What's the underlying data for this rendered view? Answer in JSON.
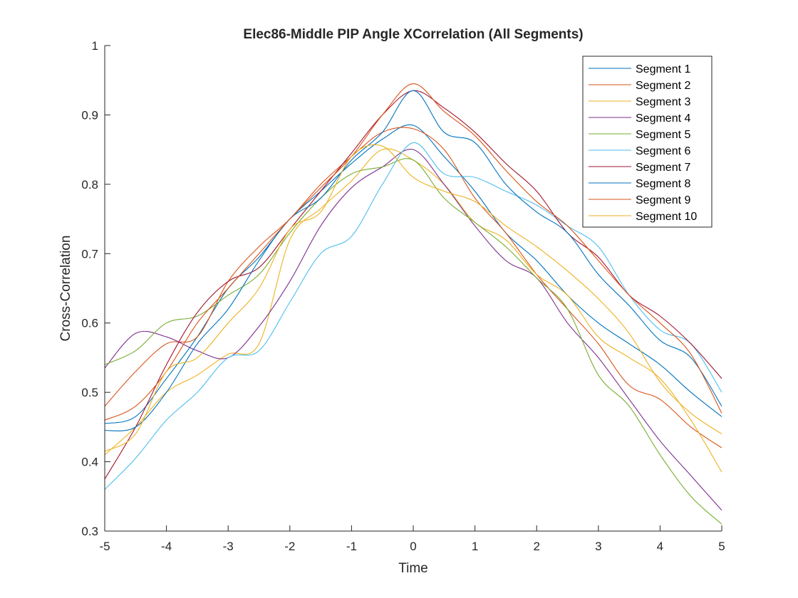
{
  "chart_data": {
    "type": "line",
    "title": "Elec86-Middle PIP Angle XCorrelation (All Segments)",
    "xlabel": "Time",
    "ylabel": "Cross-Correlation",
    "xlim": [
      -5,
      5
    ],
    "ylim": [
      0.3,
      1
    ],
    "xticks": [
      -5,
      -4,
      -3,
      -2,
      -1,
      0,
      1,
      2,
      3,
      4,
      5
    ],
    "yticks": [
      0.3,
      0.4,
      0.5,
      0.6,
      0.7,
      0.8,
      0.9,
      1
    ],
    "xtick_labels": [
      "-5",
      "-4",
      "-3",
      "-2",
      "-1",
      "0",
      "1",
      "2",
      "3",
      "4",
      "5"
    ],
    "ytick_labels": [
      "0.3",
      "0.4",
      "0.5",
      "0.6",
      "0.7",
      "0.8",
      "0.9",
      "1"
    ],
    "grid": false,
    "legend_position": "top-right",
    "x": [
      -5,
      -4.5,
      -4,
      -3.5,
      -3,
      -2.5,
      -2,
      -1.5,
      -1,
      -0.5,
      0,
      0.5,
      1,
      1.5,
      2,
      2.5,
      3,
      3.5,
      4,
      4.5,
      5
    ],
    "series": [
      {
        "name": "Segment 1",
        "color": "#0072BD",
        "values": [
          0.455,
          0.465,
          0.52,
          0.58,
          0.65,
          0.695,
          0.75,
          0.79,
          0.83,
          0.865,
          0.885,
          0.84,
          0.79,
          0.73,
          0.69,
          0.64,
          0.6,
          0.57,
          0.54,
          0.5,
          0.465
        ]
      },
      {
        "name": "Segment 2",
        "color": "#D95319",
        "values": [
          0.48,
          0.53,
          0.57,
          0.58,
          0.66,
          0.71,
          0.75,
          0.8,
          0.84,
          0.875,
          0.88,
          0.85,
          0.78,
          0.73,
          0.67,
          0.62,
          0.57,
          0.51,
          0.49,
          0.45,
          0.42
        ]
      },
      {
        "name": "Segment 3",
        "color": "#EDB120",
        "values": [
          0.41,
          0.45,
          0.5,
          0.525,
          0.555,
          0.57,
          0.72,
          0.765,
          0.805,
          0.85,
          0.835,
          0.8,
          0.745,
          0.72,
          0.67,
          0.64,
          0.58,
          0.55,
          0.52,
          0.46,
          0.385
        ]
      },
      {
        "name": "Segment 4",
        "color": "#7E2F8E",
        "values": [
          0.535,
          0.585,
          0.58,
          0.56,
          0.55,
          0.595,
          0.66,
          0.74,
          0.795,
          0.825,
          0.85,
          0.8,
          0.74,
          0.69,
          0.665,
          0.6,
          0.55,
          0.49,
          0.43,
          0.38,
          0.33
        ]
      },
      {
        "name": "Segment 5",
        "color": "#77AC30",
        "values": [
          0.54,
          0.56,
          0.6,
          0.61,
          0.64,
          0.67,
          0.73,
          0.78,
          0.815,
          0.825,
          0.835,
          0.78,
          0.745,
          0.71,
          0.665,
          0.62,
          0.525,
          0.48,
          0.41,
          0.35,
          0.31
        ]
      },
      {
        "name": "Segment 6",
        "color": "#4DBEEE",
        "values": [
          0.36,
          0.405,
          0.46,
          0.5,
          0.55,
          0.56,
          0.63,
          0.7,
          0.725,
          0.8,
          0.86,
          0.815,
          0.81,
          0.79,
          0.77,
          0.74,
          0.71,
          0.64,
          0.59,
          0.57,
          0.5
        ]
      },
      {
        "name": "Segment 7",
        "color": "#A2142F",
        "values": [
          0.375,
          0.45,
          0.54,
          0.615,
          0.66,
          0.68,
          0.735,
          0.79,
          0.845,
          0.9,
          0.935,
          0.91,
          0.875,
          0.83,
          0.79,
          0.73,
          0.695,
          0.64,
          0.61,
          0.57,
          0.52
        ]
      },
      {
        "name": "Segment 8",
        "color": "#0072BD",
        "values": [
          0.445,
          0.45,
          0.5,
          0.57,
          0.62,
          0.69,
          0.75,
          0.78,
          0.835,
          0.875,
          0.935,
          0.875,
          0.86,
          0.8,
          0.76,
          0.73,
          0.67,
          0.625,
          0.575,
          0.55,
          0.48
        ]
      },
      {
        "name": "Segment 9",
        "color": "#D95319",
        "values": [
          0.46,
          0.48,
          0.53,
          0.6,
          0.65,
          0.7,
          0.75,
          0.795,
          0.84,
          0.9,
          0.945,
          0.905,
          0.87,
          0.82,
          0.775,
          0.74,
          0.69,
          0.64,
          0.6,
          0.555,
          0.47
        ]
      },
      {
        "name": "Segment 10",
        "color": "#EDB120",
        "values": [
          0.415,
          0.44,
          0.53,
          0.55,
          0.6,
          0.65,
          0.735,
          0.76,
          0.84,
          0.855,
          0.81,
          0.79,
          0.775,
          0.74,
          0.71,
          0.675,
          0.635,
          0.585,
          0.515,
          0.47,
          0.44
        ]
      }
    ]
  }
}
